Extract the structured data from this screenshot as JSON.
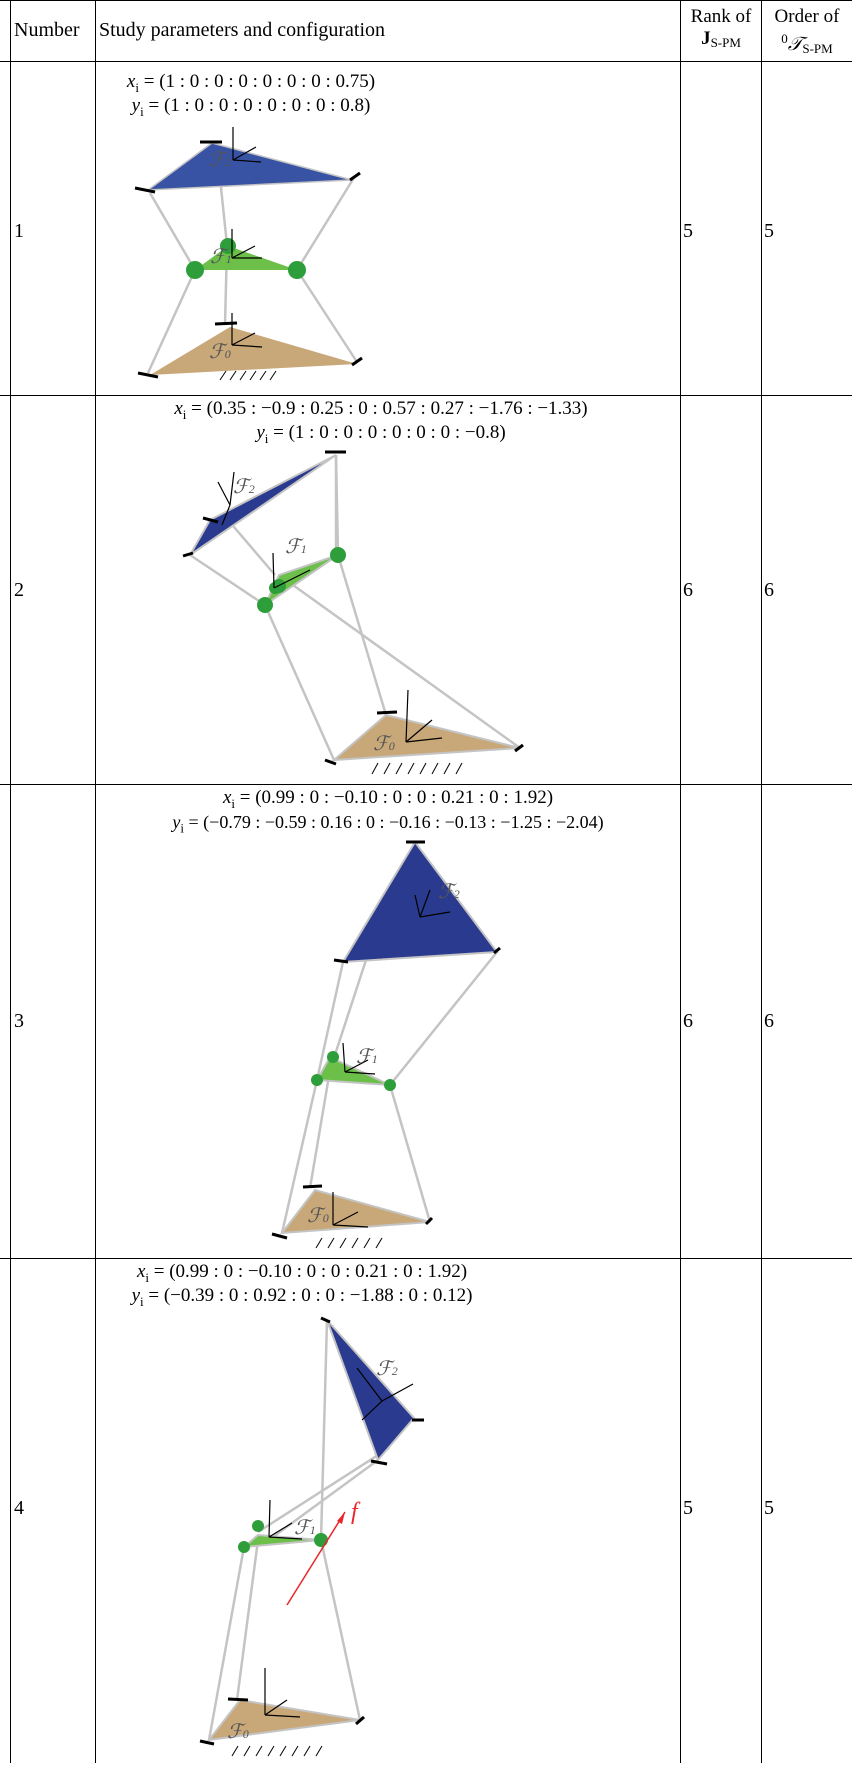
{
  "header": {
    "number": "Number",
    "study": "Study parameters and configuration",
    "rank_line1": "Rank of",
    "rank_line2": "J",
    "rank_sub": "S-PM",
    "order_line1": "Order of",
    "order_sup": "0",
    "order_sym": "𝒯",
    "order_sub": "S-PM"
  },
  "rows": [
    {
      "number": "1",
      "x_lhs": "x",
      "x_sub": "i",
      "x_expr": " = (1 : 0 : 0 : 0 : 0 : 0 : 0 : 0.75)",
      "y_lhs": "y",
      "y_sub": "i",
      "y_expr": " = (1 : 0 : 0 : 0 : 0 : 0 : 0 : 0.8)",
      "rank": "5",
      "order": "5",
      "frames": [
        "ℱ",
        "2",
        "ℱ",
        "1",
        "ℱ",
        "0"
      ]
    },
    {
      "number": "2",
      "x_lhs": "x",
      "x_sub": "i",
      "x_expr": " = (0.35 : −0.9 : 0.25 : 0 : 0.57 : 0.27 : −1.76 : −1.33)",
      "y_lhs": "y",
      "y_sub": "i",
      "y_expr": " = (1 : 0 : 0 : 0 : 0 : 0 : 0 : −0.8)",
      "rank": "6",
      "order": "6",
      "frames": [
        "ℱ",
        "2",
        "ℱ",
        "1",
        "ℱ",
        "0"
      ]
    },
    {
      "number": "3",
      "x_lhs": "x",
      "x_sub": "i",
      "x_expr": " = (0.99 : 0 : −0.10 : 0 : 0 : 0.21 : 0 : 1.92)",
      "y_lhs": "y",
      "y_sub": "i",
      "y_expr": " = (−0.79 : −0.59 : 0.16 : 0 : −0.16 : −0.13 : −1.25 : −2.04)",
      "rank": "6",
      "order": "6",
      "frames": [
        "ℱ",
        "2",
        "ℱ",
        "1",
        "ℱ",
        "0"
      ]
    },
    {
      "number": "4",
      "x_lhs": "x",
      "x_sub": "i",
      "x_expr": " = (0.99 : 0 : −0.10 : 0 : 0 : 0.21 : 0 : 1.92)",
      "y_lhs": "y",
      "y_sub": "i",
      "y_expr": " = (−0.39 : 0 : 0.92 : 0 : 0 : −1.88 : 0 : 0.12)",
      "rank": "5",
      "order": "5",
      "frames": [
        "ℱ",
        "2",
        "ℱ",
        "1",
        "ℱ",
        "0"
      ],
      "force_label": "f"
    }
  ],
  "colors": {
    "top_platform": "#2a3b8f",
    "top_platform_row1": "#3953a4",
    "mid_platform": "#6cc04a",
    "base_platform": "#c8a878",
    "joint": "#2e9e3a",
    "link": "#c4c4c4",
    "force": "#e8262b"
  }
}
